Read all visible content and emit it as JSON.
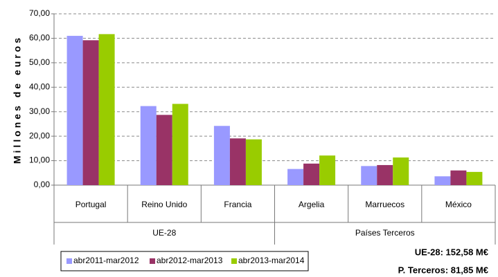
{
  "chart_data": {
    "type": "bar",
    "y_label": "Millones de euros",
    "categories": [
      "Portugal",
      "Reino Unido",
      "Francia",
      "Argelia",
      "Marruecos",
      "México"
    ],
    "groups": [
      {
        "name": "UE-28",
        "size": 3
      },
      {
        "name": "Países Terceros",
        "size": 3
      }
    ],
    "series": [
      {
        "name": "abr2011-mar2012",
        "color": "#9999ff",
        "values": [
          61.0,
          32.3,
          24.2,
          6.6,
          7.8,
          3.6
        ]
      },
      {
        "name": "abr2012-mar2013",
        "color": "#993366",
        "values": [
          59.2,
          28.7,
          19.1,
          8.8,
          8.2,
          6.0
        ]
      },
      {
        "name": "abr2013-mar2014",
        "color": "#99cc00",
        "values": [
          61.7,
          33.2,
          18.7,
          12.1,
          11.3,
          5.4
        ]
      }
    ],
    "ylim": [
      0,
      70
    ],
    "yticks": [
      {
        "value": 0,
        "label": "0,00"
      },
      {
        "value": 10,
        "label": "10,00"
      },
      {
        "value": 20,
        "label": "20,00"
      },
      {
        "value": 30,
        "label": "30,00"
      },
      {
        "value": 40,
        "label": "40,00"
      },
      {
        "value": 50,
        "label": "50,00"
      },
      {
        "value": 60,
        "label": "60,00"
      },
      {
        "value": 70,
        "label": "70,00"
      }
    ],
    "grid": true,
    "legend": "bottom-left",
    "annotations": [
      "UE-28: 152,58 M€",
      "P. Terceros: 81,85 M€"
    ]
  }
}
